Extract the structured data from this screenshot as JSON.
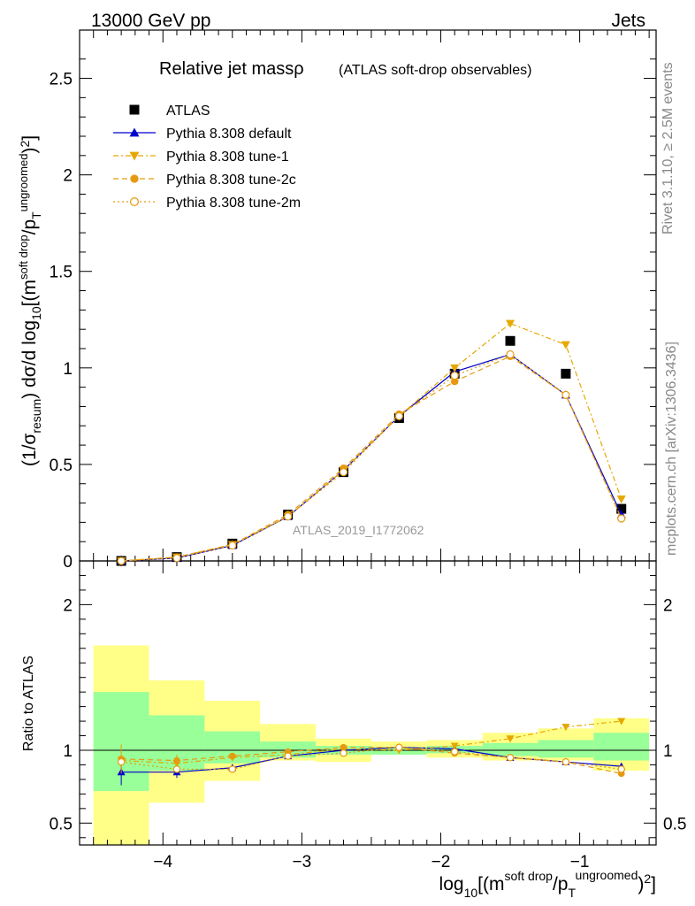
{
  "header": {
    "left": "13000 GeV pp",
    "right": "Jets"
  },
  "title": {
    "main": "Relative jet massρ",
    "sub": "(ATLAS soft-drop observables)"
  },
  "side_labels": {
    "rivet": "Rivet 3.1.10, ≥ 2.5M events",
    "mcplots": "mcplots.cern.ch [arXiv:1306.3436]"
  },
  "watermark": "ATLAS_2019_I1772062",
  "colors": {
    "atlas": "#000000",
    "default": "#0000cc",
    "tune1": "#e6a800",
    "tune2c": "#e69a10",
    "tune2m": "#e69a10",
    "band_inner": "#99ff99",
    "band_outer": "#ffff88"
  },
  "chart_data": [
    {
      "type": "scatter",
      "panel": "main",
      "ylabel": "(1/σresum) dσ/d log10[(msoft drop/pTungroomed)2]",
      "ylim": [
        0,
        2.75
      ],
      "xlim": [
        -4.6,
        -0.45
      ],
      "y_ticks": [
        "0",
        "0.5",
        "1",
        "1.5",
        "2",
        "2.5"
      ],
      "legend_position": "top-left",
      "x": [
        -4.3,
        -3.9,
        -3.5,
        -3.1,
        -2.7,
        -2.3,
        -1.9,
        -1.5,
        -1.1,
        -0.7
      ],
      "series": [
        {
          "name": "ATLAS",
          "key": "atlas",
          "marker": "square",
          "values": [
            0.0,
            0.02,
            0.09,
            0.24,
            0.46,
            0.74,
            0.97,
            1.14,
            0.97,
            0.27
          ]
        },
        {
          "name": "Pythia 8.308 default",
          "key": "default",
          "marker": "triangle-up",
          "values": [
            0.0,
            0.015,
            0.08,
            0.23,
            0.47,
            0.75,
            0.98,
            1.07,
            0.86,
            0.24
          ]
        },
        {
          "name": "Pythia 8.308 tune-1",
          "key": "tune1",
          "marker": "triangle-down",
          "values": [
            0.0,
            0.02,
            0.085,
            0.23,
            0.47,
            0.75,
            1.0,
            1.23,
            1.12,
            0.32
          ]
        },
        {
          "name": "Pythia 8.308 tune-2c",
          "key": "tune2c",
          "marker": "circle",
          "values": [
            0.0,
            0.02,
            0.085,
            0.24,
            0.48,
            0.76,
            0.93,
            1.06,
            0.86,
            0.22
          ]
        },
        {
          "name": "Pythia 8.308 tune-2m",
          "key": "tune2m",
          "marker": "open-circle",
          "values": [
            0.0,
            0.015,
            0.08,
            0.23,
            0.46,
            0.75,
            0.96,
            1.07,
            0.86,
            0.22
          ]
        }
      ]
    },
    {
      "type": "line",
      "panel": "ratio",
      "ylabel": "Ratio to ATLAS",
      "xlabel": "log10[(msoft drop/pTungroomed)2]",
      "ylim": [
        0.35,
        2.3
      ],
      "y_ticks": [
        "0.5",
        "1",
        "2"
      ],
      "x_ticks": [
        "−4",
        "−3",
        "−2",
        "−1"
      ],
      "bin_edges": [
        -4.5,
        -4.1,
        -3.7,
        -3.3,
        -2.9,
        -2.5,
        -2.1,
        -1.7,
        -1.3,
        -0.9,
        -0.5
      ],
      "band_inner": [
        [
          0.72,
          1.4
        ],
        [
          0.86,
          1.24
        ],
        [
          0.91,
          1.13
        ],
        [
          0.95,
          1.06
        ],
        [
          0.97,
          1.03
        ],
        [
          0.97,
          1.02
        ],
        [
          0.98,
          1.03
        ],
        [
          0.96,
          1.05
        ],
        [
          0.95,
          1.07
        ],
        [
          0.93,
          1.12
        ]
      ],
      "band_outer": [
        [
          0.35,
          1.72
        ],
        [
          0.64,
          1.48
        ],
        [
          0.79,
          1.34
        ],
        [
          0.93,
          1.18
        ],
        [
          0.92,
          1.08
        ],
        [
          0.97,
          1.06
        ],
        [
          0.95,
          1.07
        ],
        [
          0.93,
          1.12
        ],
        [
          0.93,
          1.15
        ],
        [
          0.86,
          1.22
        ]
      ],
      "x": [
        -4.3,
        -3.9,
        -3.5,
        -3.1,
        -2.7,
        -2.3,
        -1.9,
        -1.5,
        -1.1,
        -0.7
      ],
      "series": [
        {
          "name": "Pythia 8.308 default",
          "key": "default",
          "marker": "triangle-up",
          "values": [
            0.85,
            0.85,
            0.88,
            0.96,
            1.0,
            1.02,
            1.01,
            0.95,
            0.92,
            0.89
          ],
          "errors": [
            0.09,
            0.04,
            0.02,
            0.01,
            0.01,
            0.01,
            0.01,
            0.01,
            0.01,
            0.01
          ]
        },
        {
          "name": "Pythia 8.308 tune-1",
          "key": "tune1",
          "marker": "triangle-down",
          "values": [
            0.93,
            0.91,
            0.95,
            0.97,
            1.01,
            1.0,
            1.03,
            1.08,
            1.16,
            1.2
          ],
          "errors": [
            0.0,
            0.0,
            0.0,
            0.0,
            0.0,
            0.0,
            0.0,
            0.0,
            0.0,
            0.0
          ]
        },
        {
          "name": "Pythia 8.308 tune-2c",
          "key": "tune2c",
          "marker": "circle",
          "values": [
            0.94,
            0.93,
            0.96,
            0.99,
            1.02,
            1.02,
            0.98,
            0.95,
            0.92,
            0.84
          ],
          "errors": [
            0.1,
            0.04,
            0.02,
            0.01,
            0.01,
            0.01,
            0.01,
            0.01,
            0.01,
            0.01
          ]
        },
        {
          "name": "Pythia 8.308 tune-2m",
          "key": "tune2m",
          "marker": "open-circle",
          "values": [
            0.92,
            0.87,
            0.87,
            0.96,
            0.98,
            1.02,
            0.99,
            0.95,
            0.92,
            0.87
          ],
          "errors": [
            0.0,
            0.0,
            0.0,
            0.0,
            0.0,
            0.0,
            0.0,
            0.0,
            0.0,
            0.0
          ]
        }
      ]
    }
  ]
}
